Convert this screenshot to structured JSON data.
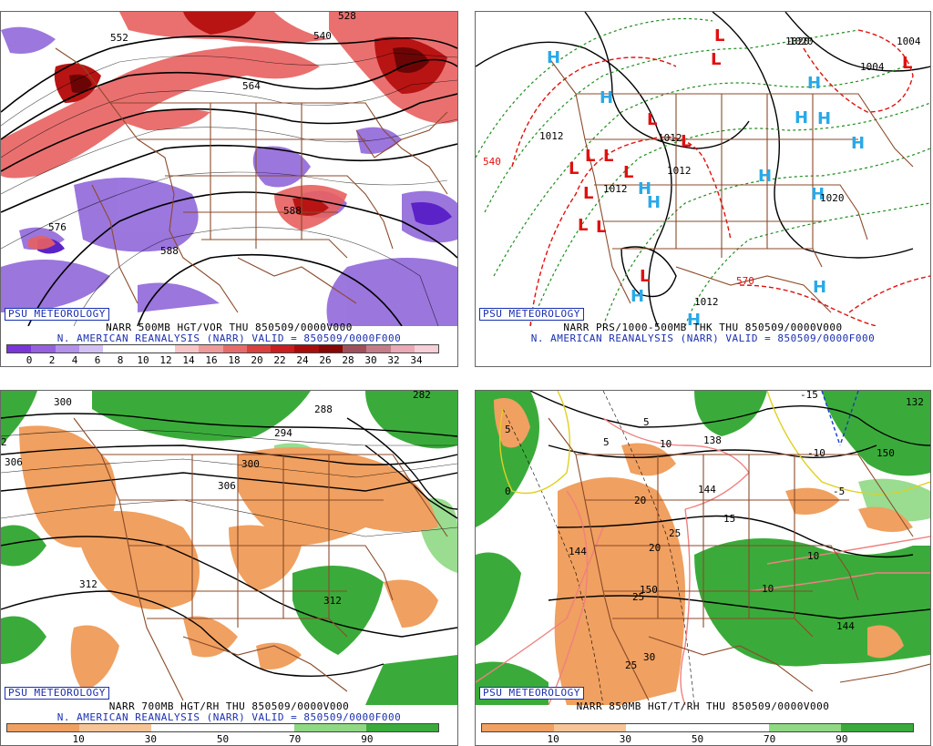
{
  "panels": [
    {
      "id": "tl",
      "label": "PSU METEOROLOGY",
      "line1": "NARR 500MB HGT/VOR THU 850509/0000V000",
      "line2": "N. AMERICAN REANALYSIS (NARR) VALID = 850509/0000F000",
      "colorbar": {
        "ticks": [
          "0",
          "2",
          "4",
          "6",
          "8",
          "10",
          "12",
          "14",
          "16",
          "18",
          "20",
          "22",
          "24",
          "26",
          "28",
          "30",
          "32",
          "34"
        ],
        "colors": [
          "#7a35d8",
          "#9560e0",
          "#b391ea",
          "#d2c1f2",
          "#ffffff",
          "#ffffff",
          "#ffffff",
          "#f7c6c6",
          "#ef9a9a",
          "#e66c6c",
          "#d84040",
          "#c81e1e",
          "#a80d0d",
          "#870606",
          "#a0505a",
          "#c47d88",
          "#e9a9b6",
          "#f6cfd8"
        ]
      },
      "contour_labels": [
        "552",
        "540",
        "528",
        "564",
        "576",
        "588",
        "588",
        "588"
      ]
    },
    {
      "id": "tr",
      "label": "PSU METEOROLOGY",
      "line1": "NARR PRS/1000-500MB THK THU 850509/0000V000",
      "line2": "N. AMERICAN REANALYSIS (NARR) VALID = 850509/0000F000",
      "contour_labels": [
        "540",
        "1020",
        "1012",
        "1004",
        "1012",
        "1012",
        "1012",
        "1004",
        "1012",
        "1020",
        "570",
        "1020"
      ]
    },
    {
      "id": "bl",
      "label": "PSU METEOROLOGY",
      "line1": "NARR 700MB HGT/RH THU 850509/0000V000",
      "line2": "N. AMERICAN REANALYSIS (NARR) VALID = 850509/0000F000",
      "colorbar": {
        "ticks": [
          "10",
          "30",
          "50",
          "70",
          "90"
        ],
        "colors": [
          "#f0a060",
          "#f6c496",
          "#ffffff",
          "#ffffff",
          "#8fd884",
          "#3aab3a"
        ]
      },
      "contour_labels": [
        "300",
        "306",
        "288",
        "294",
        "300",
        "306",
        "312",
        "312",
        "282",
        "2"
      ]
    },
    {
      "id": "br",
      "label": "PSU METEOROLOGY",
      "line1": "NARR 850MB HGT/T/RH THU 850509/0000V000",
      "colorbar": {
        "ticks": [
          "10",
          "30",
          "50",
          "70",
          "90"
        ],
        "colors": [
          "#f0a060",
          "#f6c496",
          "#ffffff",
          "#ffffff",
          "#8fd884",
          "#3aab3a"
        ]
      },
      "contour_labels": [
        "-15",
        "-10",
        "-5",
        "0",
        "5",
        "5",
        "5",
        "10",
        "10",
        "10",
        "15",
        "20",
        "20",
        "25",
        "25",
        "25",
        "30",
        "138",
        "144",
        "144",
        "144",
        "150",
        "150",
        "132"
      ]
    }
  ],
  "symbols": {
    "high": "H",
    "low": "L"
  },
  "colors": {
    "high_color": "#29a9e8",
    "low_color": "#e01010",
    "border": "#8b4a2a",
    "moist": "#38b038",
    "dry": "#f0a060"
  }
}
